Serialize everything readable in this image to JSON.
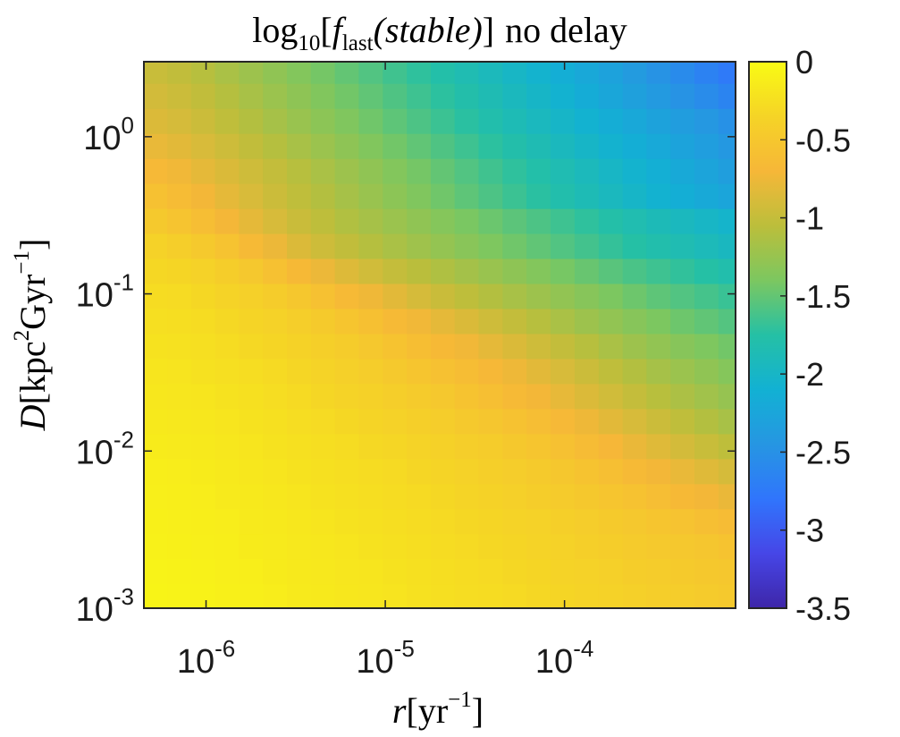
{
  "chart_data": {
    "type": "heatmap",
    "title": {
      "log": "log",
      "log_base": "10",
      "bracket_open": "[",
      "f": "f",
      "f_sub": "last",
      "arg": "(stable)",
      "bracket_close": "]",
      "suffix": "no delay"
    },
    "xlabel": {
      "symbol": "r",
      "open": "[",
      "unit": "yr",
      "exp": "−1",
      "close": "]"
    },
    "ylabel": {
      "symbol": "D",
      "open": "[",
      "unit1": "kpc",
      "exp1": "2",
      "unit2": "Gyr",
      "exp2": "−1",
      "close": "]"
    },
    "x_scale": "log",
    "y_scale": "log",
    "xlim": [
      4.5e-07,
      0.0009
    ],
    "ylim": [
      0.001,
      3
    ],
    "x_ticks": [
      {
        "value": 1e-06,
        "base": "10",
        "exp": "-6"
      },
      {
        "value": 1e-05,
        "base": "10",
        "exp": "-5"
      },
      {
        "value": 0.0001,
        "base": "10",
        "exp": "-4"
      }
    ],
    "y_ticks": [
      {
        "value": 0.001,
        "base": "10",
        "exp": "-3"
      },
      {
        "value": 0.01,
        "base": "10",
        "exp": "-2"
      },
      {
        "value": 0.1,
        "base": "10",
        "exp": "-1"
      },
      {
        "value": 1,
        "base": "10",
        "exp": "0"
      }
    ],
    "colorbar": {
      "colormap": "parula",
      "clim": [
        -3.5,
        0
      ],
      "ticks": [
        {
          "value": 0,
          "label": "0"
        },
        {
          "value": -0.5,
          "label": "-0.5"
        },
        {
          "value": -1,
          "label": "-1"
        },
        {
          "value": -1.5,
          "label": "-1.5"
        },
        {
          "value": -2,
          "label": "-2"
        },
        {
          "value": -2.5,
          "label": "-2.5"
        },
        {
          "value": -3,
          "label": "-3"
        },
        {
          "value": -3.5,
          "label": "-3.5"
        }
      ]
    },
    "grid": false,
    "x_centers": [
      5.2e-07,
      7.1e-07,
      9.6e-07,
      1.31e-06,
      1.78e-06,
      2.42e-06,
      3.3e-06,
      4.48e-06,
      6.1e-06,
      8.3e-06,
      1.13e-05,
      1.54e-05,
      2.09e-05,
      2.84e-05,
      3.87e-05,
      5.26e-05,
      7.16e-05,
      9.74e-05,
      0.000133,
      0.000181,
      0.000246,
      0.000334,
      0.000455,
      0.000619,
      0.000842
    ],
    "y_centers": [
      0.00119,
      0.00172,
      0.00248,
      0.00358,
      0.00516,
      0.00745,
      0.01075,
      0.0155,
      0.0224,
      0.0323,
      0.0466,
      0.0672,
      0.097,
      0.14,
      0.202,
      0.291,
      0.42,
      0.606,
      0.874,
      1.261,
      1.82,
      2.626
    ],
    "values": [
      [
        -0.06,
        -0.07,
        -0.08,
        -0.1,
        -0.11,
        -0.13,
        -0.15,
        -0.16,
        -0.18,
        -0.19,
        -0.21,
        -0.23,
        -0.25,
        -0.27,
        -0.28,
        -0.3,
        -0.32,
        -0.34,
        -0.36,
        -0.38,
        -0.4,
        -0.42,
        -0.44,
        -0.46,
        -0.48
      ],
      [
        -0.07,
        -0.08,
        -0.09,
        -0.11,
        -0.12,
        -0.14,
        -0.16,
        -0.17,
        -0.19,
        -0.2,
        -0.22,
        -0.24,
        -0.26,
        -0.28,
        -0.3,
        -0.32,
        -0.34,
        -0.36,
        -0.38,
        -0.4,
        -0.43,
        -0.45,
        -0.47,
        -0.49,
        -0.51
      ],
      [
        -0.09,
        -0.1,
        -0.11,
        -0.12,
        -0.14,
        -0.15,
        -0.17,
        -0.18,
        -0.2,
        -0.22,
        -0.24,
        -0.26,
        -0.28,
        -0.3,
        -0.32,
        -0.34,
        -0.36,
        -0.38,
        -0.41,
        -0.43,
        -0.46,
        -0.48,
        -0.5,
        -0.52,
        -0.55
      ],
      [
        -0.1,
        -0.11,
        -0.12,
        -0.13,
        -0.15,
        -0.16,
        -0.18,
        -0.2,
        -0.22,
        -0.24,
        -0.26,
        -0.28,
        -0.3,
        -0.32,
        -0.34,
        -0.36,
        -0.38,
        -0.41,
        -0.44,
        -0.47,
        -0.5,
        -0.53,
        -0.56,
        -0.6,
        -0.64
      ],
      [
        -0.11,
        -0.12,
        -0.13,
        -0.15,
        -0.16,
        -0.18,
        -0.2,
        -0.22,
        -0.24,
        -0.26,
        -0.28,
        -0.3,
        -0.32,
        -0.35,
        -0.37,
        -0.4,
        -0.43,
        -0.46,
        -0.49,
        -0.53,
        -0.57,
        -0.62,
        -0.67,
        -0.72,
        -0.77
      ],
      [
        -0.12,
        -0.13,
        -0.14,
        -0.16,
        -0.18,
        -0.2,
        -0.22,
        -0.24,
        -0.26,
        -0.28,
        -0.3,
        -0.33,
        -0.35,
        -0.38,
        -0.41,
        -0.44,
        -0.47,
        -0.51,
        -0.55,
        -0.6,
        -0.66,
        -0.72,
        -0.78,
        -0.84,
        -0.9
      ],
      [
        -0.14,
        -0.15,
        -0.16,
        -0.18,
        -0.2,
        -0.22,
        -0.24,
        -0.26,
        -0.28,
        -0.31,
        -0.33,
        -0.36,
        -0.39,
        -0.42,
        -0.45,
        -0.49,
        -0.53,
        -0.58,
        -0.64,
        -0.7,
        -0.77,
        -0.84,
        -0.91,
        -0.98,
        -1.04
      ],
      [
        -0.16,
        -0.17,
        -0.18,
        -0.2,
        -0.22,
        -0.24,
        -0.27,
        -0.29,
        -0.32,
        -0.35,
        -0.38,
        -0.41,
        -0.44,
        -0.48,
        -0.52,
        -0.57,
        -0.62,
        -0.68,
        -0.75,
        -0.82,
        -0.89,
        -0.96,
        -1.03,
        -1.1,
        -1.16
      ],
      [
        -0.18,
        -0.19,
        -0.2,
        -0.22,
        -0.24,
        -0.27,
        -0.3,
        -0.33,
        -0.36,
        -0.39,
        -0.42,
        -0.46,
        -0.5,
        -0.55,
        -0.6,
        -0.66,
        -0.72,
        -0.79,
        -0.86,
        -0.93,
        -1.0,
        -1.07,
        -1.14,
        -1.2,
        -1.26
      ],
      [
        -0.2,
        -0.21,
        -0.23,
        -0.25,
        -0.27,
        -0.3,
        -0.33,
        -0.36,
        -0.4,
        -0.44,
        -0.48,
        -0.53,
        -0.58,
        -0.63,
        -0.69,
        -0.75,
        -0.82,
        -0.89,
        -0.96,
        -1.03,
        -1.1,
        -1.17,
        -1.23,
        -1.29,
        -1.35
      ],
      [
        -0.22,
        -0.23,
        -0.25,
        -0.28,
        -0.31,
        -0.34,
        -0.37,
        -0.41,
        -0.45,
        -0.5,
        -0.55,
        -0.61,
        -0.67,
        -0.73,
        -0.8,
        -0.87,
        -0.94,
        -1.01,
        -1.08,
        -1.15,
        -1.22,
        -1.28,
        -1.34,
        -1.39,
        -1.44
      ],
      [
        -0.25,
        -0.26,
        -0.28,
        -0.31,
        -0.35,
        -0.38,
        -0.42,
        -0.47,
        -0.53,
        -0.59,
        -0.66,
        -0.73,
        -0.8,
        -0.87,
        -0.94,
        -1.01,
        -1.08,
        -1.15,
        -1.22,
        -1.28,
        -1.34,
        -1.4,
        -1.46,
        -1.51,
        -1.56
      ],
      [
        -0.28,
        -0.29,
        -0.32,
        -0.36,
        -0.4,
        -0.45,
        -0.51,
        -0.58,
        -0.66,
        -0.74,
        -0.82,
        -0.9,
        -0.97,
        -1.04,
        -1.1,
        -1.16,
        -1.22,
        -1.28,
        -1.34,
        -1.4,
        -1.46,
        -1.52,
        -1.57,
        -1.62,
        -1.67
      ],
      [
        -0.32,
        -0.34,
        -0.38,
        -0.43,
        -0.5,
        -0.58,
        -0.67,
        -0.76,
        -0.85,
        -0.93,
        -1.0,
        -1.06,
        -1.12,
        -1.18,
        -1.24,
        -1.3,
        -1.36,
        -1.42,
        -1.48,
        -1.54,
        -1.6,
        -1.65,
        -1.7,
        -1.75,
        -1.8
      ],
      [
        -0.38,
        -0.42,
        -0.48,
        -0.56,
        -0.66,
        -0.76,
        -0.86,
        -0.95,
        -1.02,
        -1.09,
        -1.15,
        -1.21,
        -1.27,
        -1.33,
        -1.39,
        -1.45,
        -1.51,
        -1.57,
        -1.63,
        -1.69,
        -1.75,
        -1.8,
        -1.85,
        -1.9,
        -1.95
      ],
      [
        -0.48,
        -0.54,
        -0.62,
        -0.71,
        -0.8,
        -0.89,
        -0.97,
        -1.04,
        -1.11,
        -1.17,
        -1.23,
        -1.29,
        -1.35,
        -1.41,
        -1.47,
        -1.53,
        -1.59,
        -1.65,
        -1.71,
        -1.77,
        -1.83,
        -1.89,
        -1.94,
        -1.99,
        -2.04
      ],
      [
        -0.58,
        -0.64,
        -0.72,
        -0.8,
        -0.88,
        -0.96,
        -1.03,
        -1.1,
        -1.17,
        -1.24,
        -1.31,
        -1.38,
        -1.45,
        -1.52,
        -1.59,
        -1.66,
        -1.73,
        -1.8,
        -1.87,
        -1.94,
        -2.01,
        -2.08,
        -2.14,
        -2.2,
        -2.26
      ],
      [
        -0.68,
        -0.73,
        -0.8,
        -0.87,
        -0.94,
        -1.01,
        -1.08,
        -1.15,
        -1.22,
        -1.29,
        -1.36,
        -1.43,
        -1.5,
        -1.57,
        -1.64,
        -1.71,
        -1.78,
        -1.85,
        -1.92,
        -1.99,
        -2.06,
        -2.13,
        -2.2,
        -2.27,
        -2.34
      ],
      [
        -0.78,
        -0.82,
        -0.88,
        -0.95,
        -1.02,
        -1.09,
        -1.16,
        -1.23,
        -1.3,
        -1.37,
        -1.44,
        -1.51,
        -1.58,
        -1.65,
        -1.72,
        -1.79,
        -1.86,
        -1.93,
        -2.0,
        -2.07,
        -2.14,
        -2.21,
        -2.28,
        -2.35,
        -2.42
      ],
      [
        -0.86,
        -0.9,
        -0.96,
        -1.03,
        -1.1,
        -1.17,
        -1.24,
        -1.31,
        -1.38,
        -1.45,
        -1.52,
        -1.59,
        -1.66,
        -1.73,
        -1.8,
        -1.87,
        -1.94,
        -2.01,
        -2.08,
        -2.15,
        -2.22,
        -2.29,
        -2.36,
        -2.43,
        -2.5
      ],
      [
        -0.92,
        -0.96,
        -1.02,
        -1.09,
        -1.16,
        -1.23,
        -1.3,
        -1.37,
        -1.44,
        -1.51,
        -1.58,
        -1.65,
        -1.72,
        -1.79,
        -1.86,
        -1.93,
        -2.0,
        -2.08,
        -2.16,
        -2.24,
        -2.32,
        -2.4,
        -2.48,
        -2.56,
        -2.64
      ],
      [
        -0.98,
        -1.02,
        -1.08,
        -1.15,
        -1.22,
        -1.29,
        -1.36,
        -1.43,
        -1.5,
        -1.57,
        -1.64,
        -1.71,
        -1.78,
        -1.85,
        -1.92,
        -1.99,
        -2.06,
        -2.14,
        -2.22,
        -2.3,
        -2.39,
        -2.48,
        -2.57,
        -2.66,
        -2.75
      ]
    ]
  }
}
